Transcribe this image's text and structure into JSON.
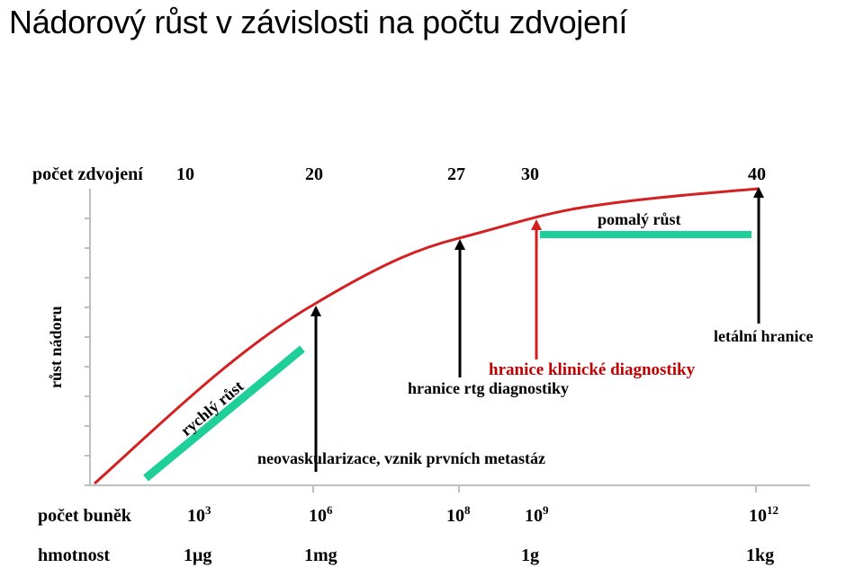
{
  "title": "Nádorový růst v závislosti na počtu zdvojení",
  "colors": {
    "curve": "#d42020",
    "marker_red": "#d42020",
    "marker_black": "#000000",
    "band": "#1fcf9a",
    "axis": "#bfbfbf",
    "red_text": "#c00000"
  },
  "chart_data": {
    "type": "line",
    "title": "Nádorový růst v závislosti na počtu zdvojení",
    "ylabel": "růst nádoru",
    "top_axis": {
      "label": "počet zdvojení",
      "ticks": [
        "10",
        "20",
        "27",
        "30",
        "40"
      ]
    },
    "bottom_rows": [
      {
        "label": "počet buněk",
        "values": [
          {
            "base": "10",
            "exp": "3"
          },
          {
            "base": "10",
            "exp": "6"
          },
          {
            "base": "10",
            "exp": "8"
          },
          {
            "base": "10",
            "exp": "9"
          },
          {
            "base": "10",
            "exp": "12"
          }
        ]
      },
      {
        "label": "hmotnost",
        "values": [
          "1μg",
          "1mg",
          "1g",
          "1kg"
        ]
      }
    ],
    "markers": [
      {
        "doublings": 20,
        "label": "neovaskularizace, vznik prvních metastáz",
        "color": "black"
      },
      {
        "doublings": 27,
        "label": "hranice rtg diagnostiky",
        "color": "black"
      },
      {
        "doublings": 30,
        "label": "hranice klinické diagnostiky",
        "color": "red"
      },
      {
        "doublings": 40,
        "label": "letální hranice",
        "color": "black"
      }
    ],
    "phases": [
      {
        "label": "rychlý růst"
      },
      {
        "label": "pomalý růst"
      }
    ]
  }
}
